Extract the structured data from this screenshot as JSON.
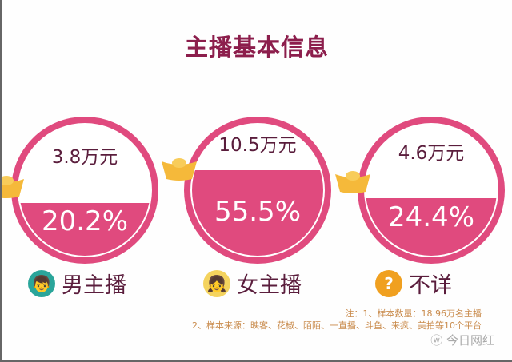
{
  "title": "主播基本信息",
  "groups": [
    {
      "label": "男主播",
      "amount": "3.8万元",
      "percent": "20.2%",
      "avatar_icon": "boy-avatar-icon",
      "avatar_color": "#2aa59a"
    },
    {
      "label": "女主播",
      "amount": "10.5万元",
      "percent": "55.5%",
      "avatar_icon": "girl-avatar-icon",
      "avatar_color": "#f4d35e"
    },
    {
      "label": "不详",
      "amount": "4.6万元",
      "percent": "24.4%",
      "avatar_icon": "question-icon",
      "avatar_color": "#f0a020"
    }
  ],
  "notes": {
    "line1": "注：1、样本数量：18.96万名主播",
    "line2": "2、样本来源：映客、花椒、陌陌、一直播、斗鱼、来疯、美拍等10个平台"
  },
  "watermark": "今日网红",
  "colors": {
    "ring": "#e04a7e",
    "title": "#8c1e4c",
    "gold": "#f5b93a",
    "note": "#c98b4c"
  }
}
